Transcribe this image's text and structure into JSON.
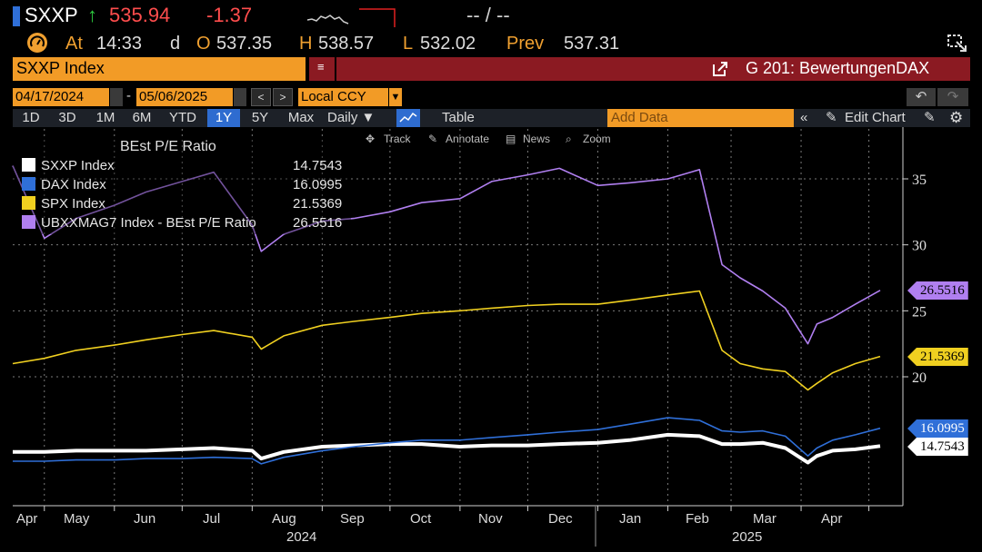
{
  "header": {
    "ticker": "SXXP",
    "arrow": "↑",
    "price": "535.94",
    "change": "-1.37",
    "placeholder": "-- / --"
  },
  "quote": {
    "at_label": "At",
    "time": "14:33",
    "day": "d",
    "open_label": "O",
    "open": "537.35",
    "high_label": "H",
    "high": "538.57",
    "low_label": "L",
    "low": "532.02",
    "prev_label": "Prev",
    "prev": "537.31"
  },
  "security": {
    "name": "SXXP Index",
    "function": "G 201: BewertungenDAX"
  },
  "date_range": {
    "start": "04/17/2024",
    "separator": "-",
    "end": "05/06/2025",
    "currency": "Local CCY"
  },
  "toolbar": {
    "ranges": [
      "1D",
      "3D",
      "1M",
      "6M",
      "YTD",
      "1Y",
      "5Y",
      "Max"
    ],
    "active_range": "1Y",
    "frequency": "Daily ▼",
    "table_label": "Table",
    "add_data_placeholder": "Add Data",
    "edit_chart": "Edit Chart"
  },
  "chart_tools": [
    "Track",
    "Annotate",
    "News",
    "Zoom"
  ],
  "legend": {
    "title": "BEst P/E Ratio",
    "items": [
      {
        "label": "SXXP Index",
        "value": "14.7543",
        "color": "#ffffff"
      },
      {
        "label": "DAX Index",
        "value": "16.0995",
        "color": "#2f6fd8"
      },
      {
        "label": "SPX Index",
        "value": "21.5369",
        "color": "#f0d020"
      },
      {
        "label": "UBXXMAG7 Index - BEst P/E Ratio",
        "value": "26.5516",
        "color": "#b07ff0"
      }
    ]
  },
  "colors": {
    "accent_orange": "#f29b26",
    "function_bar": "#8b1a22",
    "price_red": "#ff4d4d",
    "up_green": "#2ecc40"
  },
  "chart_data": {
    "type": "line",
    "ylim": [
      10,
      39
    ],
    "yticks": [
      20,
      25,
      30,
      35
    ],
    "xlabels": [
      "Apr",
      "May",
      "Jun",
      "Jul",
      "Aug",
      "Sep",
      "Oct",
      "Nov",
      "Dec",
      "Jan",
      "Feb",
      "Mar",
      "Apr"
    ],
    "years": [
      "2024",
      "2025"
    ],
    "x": [
      "2024-04-17",
      "2024-05-01",
      "2024-05-15",
      "2024-06-01",
      "2024-06-15",
      "2024-07-01",
      "2024-07-15",
      "2024-08-01",
      "2024-08-05",
      "2024-08-15",
      "2024-09-01",
      "2024-09-15",
      "2024-10-01",
      "2024-10-15",
      "2024-11-01",
      "2024-11-15",
      "2024-12-01",
      "2024-12-15",
      "2025-01-01",
      "2025-01-15",
      "2025-02-01",
      "2025-02-15",
      "2025-02-25",
      "2025-03-05",
      "2025-03-15",
      "2025-03-25",
      "2025-04-04",
      "2025-04-08",
      "2025-04-15",
      "2025-04-25",
      "2025-05-06"
    ],
    "series": [
      {
        "name": "SXXP Index",
        "color": "#ffffff",
        "values": [
          14.3,
          14.3,
          14.4,
          14.4,
          14.4,
          14.5,
          14.6,
          14.4,
          13.8,
          14.3,
          14.7,
          14.8,
          14.9,
          14.9,
          14.7,
          14.8,
          14.8,
          14.9,
          15.0,
          15.2,
          15.6,
          15.5,
          14.9,
          14.9,
          15.0,
          14.6,
          13.5,
          14.0,
          14.4,
          14.5,
          14.75
        ]
      },
      {
        "name": "DAX Index",
        "color": "#2f6fd8",
        "values": [
          13.6,
          13.6,
          13.7,
          13.7,
          13.8,
          13.8,
          13.9,
          13.8,
          13.4,
          13.9,
          14.4,
          14.7,
          15.0,
          15.2,
          15.2,
          15.4,
          15.6,
          15.8,
          16.0,
          16.4,
          16.9,
          16.7,
          15.9,
          15.8,
          15.9,
          15.5,
          14.0,
          14.6,
          15.2,
          15.6,
          16.1
        ]
      },
      {
        "name": "SPX Index",
        "color": "#f0d020",
        "values": [
          21.0,
          21.4,
          22.0,
          22.4,
          22.8,
          23.2,
          23.5,
          23.0,
          22.1,
          23.1,
          23.9,
          24.2,
          24.5,
          24.8,
          25.0,
          25.2,
          25.4,
          25.5,
          25.5,
          25.8,
          26.2,
          26.5,
          22.0,
          21.0,
          20.6,
          20.4,
          19.0,
          19.5,
          20.3,
          21.0,
          21.54
        ]
      },
      {
        "name": "UBXXMAG7 Index - BEst P/E Ratio",
        "color": "#b07ff0",
        "values": [
          36.0,
          30.5,
          32.0,
          33.0,
          34.0,
          34.8,
          35.5,
          31.5,
          29.5,
          30.8,
          31.8,
          32.0,
          32.5,
          33.2,
          33.5,
          34.8,
          35.3,
          35.8,
          34.5,
          34.7,
          35.0,
          35.7,
          28.5,
          27.5,
          26.5,
          25.2,
          22.5,
          24.0,
          24.5,
          25.5,
          26.55
        ]
      }
    ]
  }
}
